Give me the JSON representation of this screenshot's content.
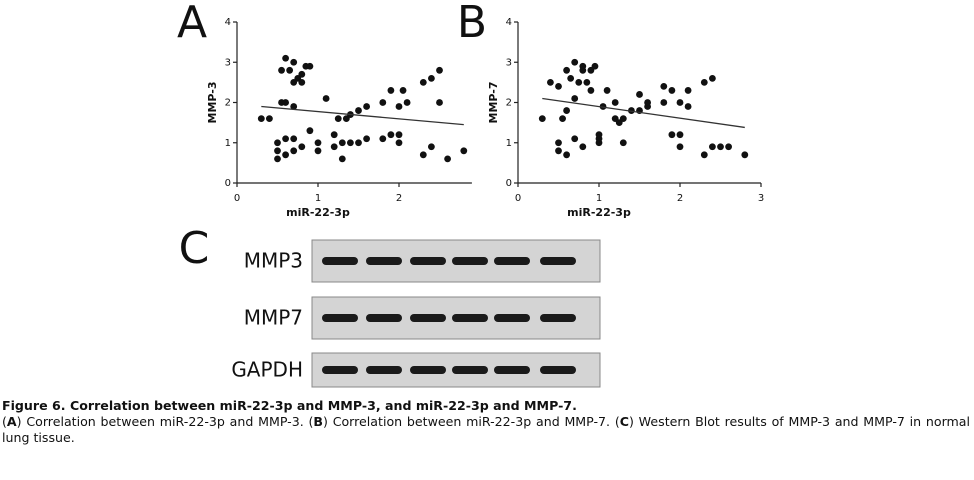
{
  "chart_data": [
    {
      "type": "scatter",
      "panel": "A",
      "xlabel": "miR-22-3p",
      "ylabel": "MMP-3",
      "color": "#111111",
      "x": [
        0.3,
        0.4,
        0.55,
        0.6,
        0.65,
        0.7,
        0.75,
        0.8,
        0.85,
        0.9,
        0.7,
        0.8,
        0.55,
        0.6,
        0.7,
        0.5,
        0.5,
        0.5,
        0.6,
        0.6,
        0.7,
        0.7,
        0.8,
        0.9,
        1.0,
        1.0,
        1.1,
        1.2,
        1.2,
        1.25,
        1.3,
        1.3,
        1.35,
        1.4,
        1.4,
        1.5,
        1.5,
        1.6,
        1.6,
        1.8,
        1.8,
        1.9,
        1.9,
        2.0,
        2.0,
        2.0,
        2.05,
        2.1,
        2.3,
        2.3,
        2.4,
        2.4,
        2.5,
        2.5,
        2.6,
        2.8
      ],
      "values": [
        1.6,
        1.6,
        2.8,
        3.1,
        2.8,
        3.0,
        2.6,
        2.7,
        2.9,
        2.9,
        2.5,
        2.5,
        2.0,
        2.0,
        1.9,
        1.0,
        0.8,
        0.6,
        1.1,
        0.7,
        1.1,
        0.8,
        0.9,
        1.3,
        1.0,
        0.8,
        2.1,
        1.2,
        0.9,
        1.6,
        1.0,
        0.6,
        1.6,
        1.7,
        1.0,
        1.8,
        1.0,
        1.9,
        1.1,
        2.0,
        1.1,
        2.3,
        1.2,
        1.9,
        1.2,
        1.0,
        2.3,
        2.0,
        2.5,
        0.7,
        2.6,
        0.9,
        2.8,
        2.0,
        0.6,
        0.8
      ],
      "fit": {
        "x": [
          0.3,
          2.8
        ],
        "y": [
          1.9,
          1.45
        ]
      },
      "xlim": [
        0,
        2.9
      ],
      "xticks": [
        0,
        1,
        2
      ],
      "ylim": [
        0,
        4
      ],
      "yticks": [
        0,
        1,
        2,
        3,
        4
      ]
    },
    {
      "type": "scatter",
      "panel": "B",
      "xlabel": "miR-22-3p",
      "ylabel": "MMP-7",
      "color": "#111111",
      "x": [
        0.3,
        0.4,
        0.5,
        0.5,
        0.5,
        0.55,
        0.6,
        0.6,
        0.6,
        0.65,
        0.7,
        0.7,
        0.7,
        0.75,
        0.8,
        0.8,
        0.85,
        0.9,
        0.95,
        0.9,
        0.8,
        1.0,
        1.0,
        1.0,
        1.05,
        1.1,
        1.2,
        1.2,
        1.25,
        1.3,
        1.3,
        1.4,
        1.5,
        1.5,
        1.6,
        1.6,
        1.8,
        1.8,
        1.9,
        1.9,
        2.0,
        2.0,
        2.0,
        2.1,
        2.1,
        2.3,
        2.3,
        2.4,
        2.4,
        2.5,
        2.6,
        2.8
      ],
      "values": [
        1.6,
        2.5,
        2.4,
        0.8,
        1.0,
        1.6,
        2.8,
        1.8,
        0.7,
        2.6,
        3.0,
        2.1,
        1.1,
        2.5,
        2.9,
        2.8,
        2.5,
        2.8,
        2.9,
        2.3,
        0.9,
        1.1,
        1.2,
        1.0,
        1.9,
        2.3,
        2.0,
        1.6,
        1.5,
        1.6,
        1.0,
        1.8,
        2.2,
        1.8,
        1.9,
        2.0,
        2.4,
        2.0,
        2.3,
        1.2,
        1.2,
        0.9,
        2.0,
        2.3,
        1.9,
        2.5,
        0.7,
        2.6,
        0.9,
        0.9,
        0.9,
        0.7
      ],
      "fit": {
        "x": [
          0.3,
          2.8
        ],
        "y": [
          2.1,
          1.38
        ]
      },
      "xlim": [
        0,
        3
      ],
      "xticks": [
        0,
        1,
        2,
        3
      ],
      "ylim": [
        0,
        4
      ],
      "yticks": [
        0,
        1,
        2,
        3,
        4
      ]
    }
  ],
  "blot": {
    "panel": "C",
    "rows": [
      "MMP3",
      "MMP7",
      "GAPDH"
    ]
  },
  "caption": {
    "title": "Figure 6. Correlation between miR-22-3p and MMP-3, and miR-22-3p and MMP-7.",
    "items": [
      {
        "pre": "(",
        "label": "A",
        "post": ") Correlation between miR-22-3p and MMP-3. "
      },
      {
        "pre": "(",
        "label": "B",
        "post": ") Correlation between miR-22-3p and MMP-7. "
      },
      {
        "pre": "(",
        "label": "C",
        "post": ") Western Blot results of MMP-3 and MMP-7 in normal lung tissue."
      }
    ]
  }
}
